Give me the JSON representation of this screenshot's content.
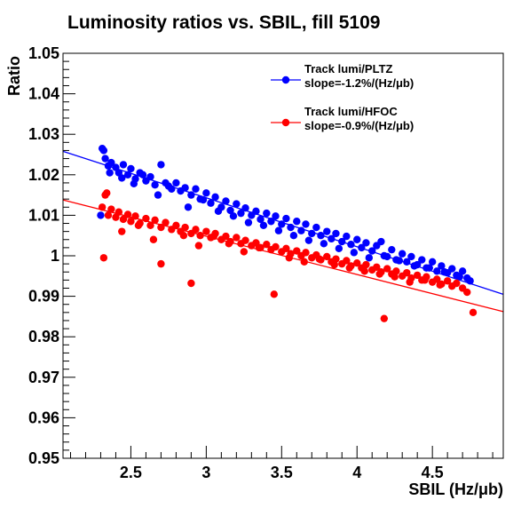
{
  "chart_data": {
    "type": "scatter",
    "title": "Luminosity ratios vs. SBIL, fill 5109",
    "xlabel": "SBIL (Hz/μb)",
    "ylabel": "Ratio",
    "xlim": [
      2.05,
      4.97
    ],
    "ylim": [
      0.95,
      1.05
    ],
    "x_ticks": [
      "2.5",
      "3",
      "3.5",
      "4",
      "4.5"
    ],
    "y_ticks": [
      "0.95",
      "0.96",
      "0.97",
      "0.98",
      "0.99",
      "1",
      "1.01",
      "1.02",
      "1.03",
      "1.04",
      "1.05"
    ],
    "grid": false,
    "legend_position": "top-right",
    "series": [
      {
        "name": "Track lumi/PLTZ",
        "slope_label": "slope=-1.2%/(Hz/μb)",
        "color": "#0000ff",
        "fit": {
          "x": [
            2.05,
            4.97
          ],
          "y": [
            1.0258,
            0.9905
          ]
        },
        "x": [
          2.31,
          2.33,
          2.35,
          2.37,
          2.4,
          2.42,
          2.45,
          2.48,
          2.5,
          2.53,
          2.56,
          2.6,
          2.63,
          2.66,
          2.7,
          2.73,
          2.77,
          2.8,
          2.83,
          2.86,
          2.9,
          2.93,
          2.96,
          3.0,
          3.03,
          3.06,
          3.1,
          3.13,
          3.16,
          3.2,
          3.23,
          3.26,
          3.3,
          3.33,
          3.36,
          3.4,
          3.43,
          3.46,
          3.5,
          3.53,
          3.56,
          3.6,
          3.63,
          3.66,
          3.7,
          3.73,
          3.76,
          3.8,
          3.83,
          3.86,
          3.9,
          3.93,
          3.96,
          4.0,
          4.03,
          4.06,
          4.1,
          4.13,
          4.16,
          4.2,
          4.23,
          4.26,
          4.3,
          4.33,
          4.36,
          4.4,
          4.43,
          4.46,
          4.5,
          4.53,
          4.56,
          4.6,
          4.63,
          4.66,
          4.7,
          4.73,
          2.3,
          2.32,
          2.36,
          2.44,
          2.52,
          2.58,
          2.68,
          2.75,
          2.88,
          2.98,
          3.08,
          3.18,
          3.28,
          3.38,
          3.48,
          3.58,
          3.68,
          3.78,
          3.88,
          3.98,
          4.08,
          4.18,
          4.28,
          4.38,
          4.48,
          4.58,
          4.68,
          4.75
        ],
        "y": [
          1.0265,
          1.024,
          1.0222,
          1.023,
          1.0218,
          1.0205,
          1.0225,
          1.02,
          1.0215,
          1.019,
          1.0205,
          1.0185,
          1.0195,
          1.0175,
          1.0225,
          1.018,
          1.0165,
          1.018,
          1.016,
          1.0168,
          1.015,
          1.0165,
          1.014,
          1.0155,
          1.013,
          1.0145,
          1.012,
          1.0135,
          1.0112,
          1.0128,
          1.0105,
          1.0118,
          1.01,
          1.011,
          1.009,
          1.0105,
          1.0085,
          1.0098,
          1.0078,
          1.0092,
          1.007,
          1.0085,
          1.0062,
          1.0078,
          1.0055,
          1.007,
          1.005,
          1.006,
          1.0042,
          1.0055,
          1.0035,
          1.0048,
          1.0028,
          1.004,
          1.002,
          1.0032,
          1.0012,
          1.0025,
          1.0035,
          0.9998,
          1.0015,
          0.999,
          1.0005,
          0.9985,
          0.9998,
          0.9978,
          0.999,
          0.997,
          0.9985,
          0.9962,
          0.9975,
          0.9958,
          0.9968,
          0.9952,
          0.9962,
          0.9945,
          1.01,
          1.026,
          1.0205,
          1.0192,
          1.0178,
          1.02,
          1.015,
          1.0172,
          1.012,
          1.0138,
          1.011,
          1.0098,
          1.0082,
          1.0075,
          1.0062,
          1.005,
          1.0038,
          1.003,
          1.0018,
          1.0008,
          0.9995,
          1.0,
          0.9988,
          0.9975,
          0.997,
          0.996,
          0.9948,
          0.9938
        ]
      },
      {
        "name": "Track lumi/HFOC",
        "slope_label": "slope=-0.9%/(Hz/μb)",
        "color": "#ff0000",
        "fit": {
          "x": [
            2.05,
            4.97
          ],
          "y": [
            1.0138,
            0.9862
          ]
        },
        "x": [
          2.31,
          2.33,
          2.35,
          2.37,
          2.4,
          2.42,
          2.45,
          2.48,
          2.5,
          2.53,
          2.56,
          2.6,
          2.63,
          2.66,
          2.7,
          2.73,
          2.77,
          2.8,
          2.83,
          2.86,
          2.9,
          2.93,
          2.96,
          3.0,
          3.03,
          3.06,
          3.1,
          3.13,
          3.16,
          3.2,
          3.23,
          3.26,
          3.3,
          3.33,
          3.36,
          3.4,
          3.43,
          3.46,
          3.5,
          3.53,
          3.56,
          3.6,
          3.63,
          3.66,
          3.7,
          3.73,
          3.76,
          3.8,
          3.83,
          3.86,
          3.9,
          3.93,
          3.96,
          4.0,
          4.03,
          4.06,
          4.1,
          4.13,
          4.16,
          4.2,
          4.23,
          4.26,
          4.3,
          4.33,
          4.36,
          4.4,
          4.43,
          4.46,
          4.5,
          4.53,
          4.56,
          4.6,
          4.63,
          4.66,
          4.7,
          4.73,
          2.32,
          2.7,
          2.9,
          3.45,
          4.18,
          4.77,
          2.34,
          2.44,
          2.55,
          2.65,
          2.85,
          2.95,
          3.05,
          3.15,
          3.25,
          3.35,
          3.55,
          3.65,
          3.75,
          3.85,
          3.95,
          4.05,
          4.15,
          4.25,
          4.35,
          4.45,
          4.55
        ],
        "y": [
          1.012,
          1.015,
          1.01,
          1.0115,
          1.0095,
          1.0108,
          1.009,
          1.0102,
          1.0085,
          1.0098,
          1.008,
          1.0092,
          1.0075,
          1.0088,
          1.007,
          1.0082,
          1.0065,
          1.0075,
          1.006,
          1.007,
          1.0055,
          1.0065,
          1.005,
          1.006,
          1.0045,
          1.0055,
          1.004,
          1.0048,
          1.0035,
          1.0045,
          1.003,
          1.0038,
          1.0025,
          1.0032,
          1.002,
          1.0028,
          1.0015,
          1.0022,
          1.001,
          1.0018,
          1.0005,
          1.0012,
          1.0,
          1.0008,
          0.9995,
          1.0002,
          0.999,
          0.9998,
          0.9985,
          0.9992,
          0.998,
          0.9988,
          0.9975,
          0.9982,
          0.997,
          0.9978,
          0.9965,
          0.9972,
          0.996,
          0.9968,
          0.9955,
          0.9962,
          0.995,
          0.9958,
          0.9945,
          0.9952,
          0.994,
          0.9948,
          0.9935,
          0.9942,
          0.993,
          0.9938,
          0.9925,
          0.9932,
          0.992,
          0.991,
          0.9995,
          0.998,
          0.9932,
          0.9905,
          0.9845,
          0.986,
          1.0155,
          1.006,
          1.0075,
          1.004,
          1.005,
          1.0025,
          1.0048,
          1.003,
          1.001,
          1.002,
          0.9995,
          0.9985,
          0.9992,
          0.9978,
          0.997,
          0.9962,
          0.9955,
          0.9948,
          0.9935,
          0.994,
          0.9928
        ]
      }
    ]
  }
}
